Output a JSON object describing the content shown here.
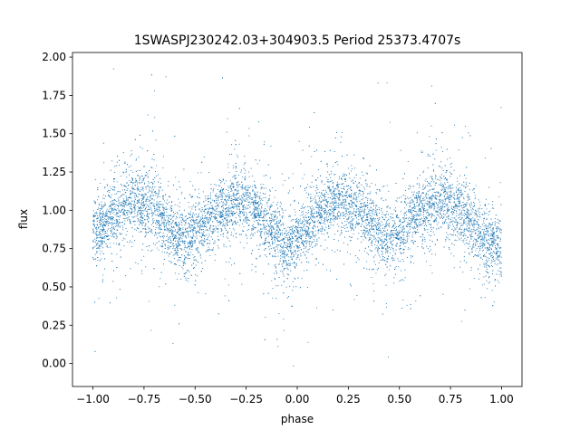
{
  "chart_data": {
    "type": "scatter",
    "title": "1SWASPJ230242.03+304903.5 Period 25373.4707s",
    "xlabel": "phase",
    "ylabel": "flux",
    "xlim": [
      -1.1,
      1.1
    ],
    "ylim": [
      -0.15,
      2.03
    ],
    "xticks": [
      -1.0,
      -0.75,
      -0.5,
      -0.25,
      0.0,
      0.25,
      0.5,
      0.75,
      1.0
    ],
    "yticks": [
      0.0,
      0.25,
      0.5,
      0.75,
      1.0,
      1.25,
      1.5,
      1.75,
      2.0
    ],
    "xtick_labels": [
      "−1.00",
      "−0.75",
      "−0.50",
      "−0.25",
      "0.00",
      "0.25",
      "0.50",
      "0.75",
      "1.00"
    ],
    "ytick_labels": [
      "0.00",
      "0.25",
      "0.50",
      "0.75",
      "1.00",
      "1.25",
      "1.50",
      "1.75",
      "2.00"
    ],
    "grid": false,
    "marker_color": "#1f77b4",
    "series": [
      {
        "x": [
          -1.0,
          -0.9,
          -0.8,
          -0.7,
          -0.6,
          -0.55,
          -0.5,
          -0.4,
          -0.3,
          -0.2,
          -0.1,
          -0.05,
          0.0,
          0.1,
          0.2,
          0.3,
          0.4,
          0.45,
          0.5,
          0.6,
          0.7,
          0.8,
          0.9,
          1.0
        ],
        "y": [
          0.84,
          0.98,
          1.06,
          1.02,
          0.85,
          0.8,
          0.84,
          0.98,
          1.06,
          1.0,
          0.84,
          0.73,
          0.8,
          0.97,
          1.06,
          1.02,
          0.86,
          0.8,
          0.84,
          0.98,
          1.06,
          1.0,
          0.84,
          0.76
        ]
      }
    ]
  }
}
